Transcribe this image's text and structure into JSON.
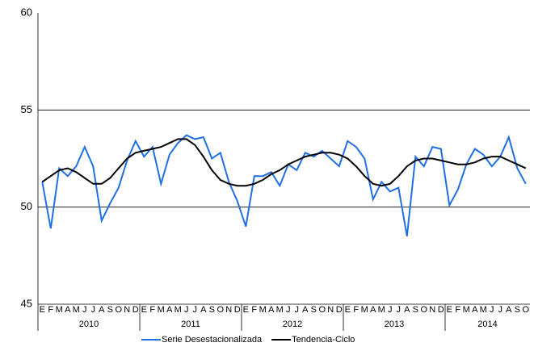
{
  "chart_data": {
    "type": "line",
    "categories": [
      "E",
      "F",
      "M",
      "A",
      "M",
      "J",
      "J",
      "A",
      "S",
      "O",
      "N",
      "D",
      "E",
      "F",
      "M",
      "A",
      "M",
      "J",
      "J",
      "A",
      "S",
      "O",
      "N",
      "D",
      "E",
      "F",
      "M",
      "A",
      "M",
      "J",
      "J",
      "A",
      "S",
      "O",
      "N",
      "D",
      "E",
      "F",
      "M",
      "A",
      "M",
      "J",
      "J",
      "A",
      "S",
      "O",
      "N",
      "D",
      "E",
      "F",
      "M",
      "A",
      "M",
      "J",
      "J",
      "A",
      "S",
      "O"
    ],
    "years": [
      "2010",
      "2011",
      "2012",
      "2013",
      "2014"
    ],
    "series": [
      {
        "name": "Serie Desestacionalizada",
        "color": "#1f6fe5",
        "values": [
          51.3,
          48.9,
          52.0,
          51.6,
          52.1,
          53.1,
          52.1,
          49.3,
          50.2,
          51.0,
          52.4,
          53.4,
          52.6,
          53.1,
          51.2,
          52.7,
          53.3,
          53.7,
          53.5,
          53.6,
          52.5,
          52.8,
          51.3,
          50.3,
          49.0,
          51.6,
          51.6,
          51.8,
          51.1,
          52.2,
          51.9,
          52.8,
          52.6,
          52.9,
          52.5,
          52.1,
          53.4,
          53.1,
          52.5,
          50.4,
          51.3,
          50.8,
          51.0,
          48.5,
          52.6,
          52.1,
          53.1,
          53.0,
          50.1,
          50.9,
          52.2,
          53.0,
          52.7,
          52.1,
          52.6,
          53.6,
          52.0,
          51.2
        ]
      },
      {
        "name": "Tendencia-Ciclo",
        "color": "#000000",
        "values": [
          51.3,
          51.6,
          51.9,
          52.0,
          51.8,
          51.5,
          51.2,
          51.2,
          51.5,
          52.0,
          52.5,
          52.8,
          52.9,
          53.0,
          53.1,
          53.3,
          53.5,
          53.5,
          53.2,
          52.6,
          51.9,
          51.4,
          51.2,
          51.1,
          51.1,
          51.2,
          51.4,
          51.7,
          51.9,
          52.2,
          52.4,
          52.6,
          52.7,
          52.8,
          52.8,
          52.7,
          52.5,
          52.1,
          51.6,
          51.2,
          51.1,
          51.2,
          51.6,
          52.1,
          52.4,
          52.5,
          52.5,
          52.4,
          52.3,
          52.2,
          52.2,
          52.3,
          52.5,
          52.6,
          52.6,
          52.4,
          52.2,
          52.0
        ]
      }
    ],
    "ylim": [
      45,
      60
    ],
    "yticks": [
      45,
      50,
      55,
      60
    ],
    "grid": true
  }
}
